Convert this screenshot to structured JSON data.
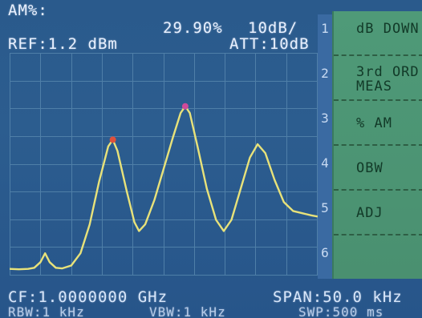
{
  "header": {
    "mode_label": "AM%:",
    "am_value": "29.90%",
    "scale": "10dB/",
    "ref_level": "REF:1.2 dBm",
    "attenuation": "ATT:10dB"
  },
  "side_numbers": [
    "1",
    "2",
    "3",
    "4",
    "5",
    "6"
  ],
  "softkeys": [
    {
      "label_lines": [
        "dB DOWN"
      ]
    },
    {
      "label_lines": [
        "3rd ORD",
        "MEAS"
      ]
    },
    {
      "label_lines": [
        "% AM"
      ]
    },
    {
      "label_lines": [
        "OBW"
      ]
    },
    {
      "label_lines": [
        "ADJ"
      ]
    },
    {
      "label_lines": [
        ""
      ]
    }
  ],
  "footer": {
    "center_freq": "CF:1.0000000 GHz",
    "span": "SPAN:50.0 kHz",
    "rbw": "RBW:1 kHz",
    "vbw": "VBW:1 kHz",
    "sweep": "SWP:500 ms"
  },
  "colors": {
    "background": "#2c5d8f",
    "grid": "#4f7fa8",
    "trace": "#e8e27a",
    "marker_left": "#e0503c",
    "marker_center": "#d04a9a",
    "softkey_panel": "#4c9574"
  },
  "chart_data": {
    "type": "line",
    "grid_divisions": {
      "x": 10,
      "y": 8
    },
    "trace_relative_level": [
      [
        0.0,
        0.03
      ],
      [
        0.03,
        0.028
      ],
      [
        0.06,
        0.03
      ],
      [
        0.08,
        0.035
      ],
      [
        0.1,
        0.06
      ],
      [
        0.115,
        0.1
      ],
      [
        0.13,
        0.06
      ],
      [
        0.15,
        0.035
      ],
      [
        0.17,
        0.032
      ],
      [
        0.2,
        0.045
      ],
      [
        0.23,
        0.1
      ],
      [
        0.26,
        0.23
      ],
      [
        0.29,
        0.42
      ],
      [
        0.32,
        0.58
      ],
      [
        0.335,
        0.61
      ],
      [
        0.35,
        0.56
      ],
      [
        0.38,
        0.38
      ],
      [
        0.405,
        0.24
      ],
      [
        0.42,
        0.2
      ],
      [
        0.44,
        0.23
      ],
      [
        0.47,
        0.34
      ],
      [
        0.5,
        0.48
      ],
      [
        0.53,
        0.62
      ],
      [
        0.555,
        0.73
      ],
      [
        0.57,
        0.76
      ],
      [
        0.585,
        0.73
      ],
      [
        0.61,
        0.58
      ],
      [
        0.64,
        0.39
      ],
      [
        0.67,
        0.25
      ],
      [
        0.695,
        0.2
      ],
      [
        0.72,
        0.25
      ],
      [
        0.75,
        0.39
      ],
      [
        0.78,
        0.53
      ],
      [
        0.805,
        0.59
      ],
      [
        0.83,
        0.55
      ],
      [
        0.86,
        0.43
      ],
      [
        0.89,
        0.33
      ],
      [
        0.92,
        0.29
      ],
      [
        0.95,
        0.28
      ],
      [
        0.98,
        0.27
      ],
      [
        1.0,
        0.265
      ]
    ],
    "markers": [
      {
        "x": 0.335,
        "y": 0.61
      },
      {
        "x": 0.57,
        "y": 0.76
      }
    ]
  }
}
